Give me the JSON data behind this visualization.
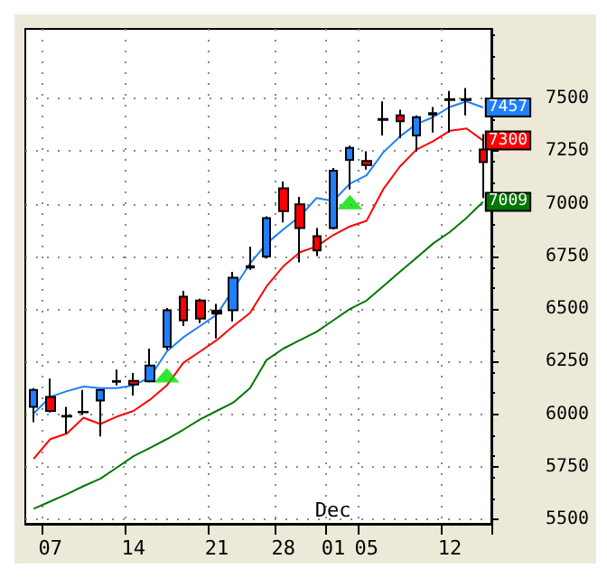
{
  "chart_data": {
    "type": "candlestick",
    "categories": [
      null,
      "07",
      null,
      null,
      null,
      null,
      "14",
      null,
      null,
      null,
      null,
      "21",
      null,
      null,
      null,
      "28",
      null,
      null,
      "01",
      null,
      "05",
      null,
      null,
      null,
      null,
      "12",
      null,
      null
    ],
    "ohlc": [
      [
        6035,
        6124,
        5962,
        6116
      ],
      [
        6083,
        6169,
        6008,
        6016
      ],
      [
        5992,
        6035,
        5909,
        5989
      ],
      [
        6010,
        6116,
        5997,
        6012
      ],
      [
        6065,
        6118,
        5895,
        6116
      ],
      [
        6154,
        6212,
        6137,
        6158
      ],
      [
        6159,
        6196,
        6089,
        6142
      ],
      [
        6156,
        6312,
        6151,
        6231
      ],
      [
        6320,
        6505,
        6306,
        6494
      ],
      [
        6559,
        6586,
        6419,
        6446
      ],
      [
        6540,
        6549,
        6433,
        6454
      ],
      [
        6478,
        6524,
        6360,
        6492
      ],
      [
        6494,
        6676,
        6441,
        6649
      ],
      [
        6697,
        6795,
        6686,
        6703
      ],
      [
        6749,
        6940,
        6740,
        6932
      ],
      [
        7073,
        7105,
        6911,
        6965
      ],
      [
        6997,
        7032,
        6722,
        6884
      ],
      [
        6846,
        6884,
        6751,
        6778
      ],
      [
        6884,
        7170,
        6878,
        7157
      ],
      [
        7208,
        7276,
        7068,
        7265
      ],
      [
        7203,
        7249,
        7162,
        7184
      ],
      [
        7398,
        7486,
        7324,
        7402
      ],
      [
        7419,
        7446,
        7311,
        7392
      ],
      [
        7324,
        7419,
        7249,
        7411
      ],
      [
        7424,
        7459,
        7338,
        7430
      ],
      [
        7492,
        7535,
        7338,
        7497
      ],
      [
        7497,
        7549,
        7419,
        7492
      ],
      [
        7257,
        7330,
        7027,
        7197
      ]
    ],
    "colors": [
      "#1e7fff",
      "#ff0000",
      "#000000",
      "#000000",
      "#1e7fff",
      "#000000",
      "#ff0000",
      "#1e7fff",
      "#1e7fff",
      "#ff0000",
      "#ff0000",
      "#000000",
      "#1e7fff",
      "#000000",
      "#1e7fff",
      "#ff0000",
      "#ff0000",
      "#ff0000",
      "#1e7fff",
      "#1e7fff",
      "#ff0000",
      "#000000",
      "#ff0000",
      "#1e7fff",
      "#000000",
      "#000000",
      "#000000",
      "#ff0000"
    ],
    "series": [
      {
        "type": "line",
        "color": "#1e7fff",
        "values": [
          6003,
          6083,
          6110,
          6132,
          6124,
          6124,
          6137,
          6177,
          6298,
          6366,
          6419,
          6473,
          6594,
          6716,
          6811,
          6878,
          6940,
          7027,
          7013,
          7095,
          7135,
          7243,
          7319,
          7378,
          7411,
          7459,
          7486,
          7457
        ],
        "value_labels": [
          null,
          null,
          null,
          null,
          null,
          null,
          null,
          null,
          null,
          null,
          null,
          null,
          null,
          null,
          null,
          null,
          null,
          null,
          null,
          null,
          null,
          null,
          null,
          null,
          null,
          null,
          null,
          "7457"
        ]
      },
      {
        "type": "line",
        "color": "#ff0000",
        "values": [
          5788,
          5882,
          5909,
          5984,
          5954,
          5989,
          6016,
          6070,
          6137,
          6245,
          6298,
          6352,
          6419,
          6481,
          6608,
          6703,
          6770,
          6797,
          6851,
          6892,
          6919,
          7068,
          7176,
          7257,
          7297,
          7346,
          7357,
          7300
        ],
        "value_labels": [
          null,
          null,
          null,
          null,
          null,
          null,
          null,
          null,
          null,
          null,
          null,
          null,
          null,
          null,
          null,
          null,
          null,
          null,
          null,
          null,
          null,
          null,
          null,
          null,
          null,
          null,
          null,
          "7300"
        ]
      },
      {
        "type": "line",
        "color": "#007700",
        "values": [
          5551,
          5586,
          5621,
          5659,
          5694,
          5747,
          5801,
          5841,
          5882,
          5927,
          5976,
          6016,
          6056,
          6124,
          6258,
          6312,
          6352,
          6392,
          6446,
          6500,
          6540,
          6608,
          6676,
          6743,
          6811,
          6865,
          6932,
          7009
        ],
        "value_labels": [
          null,
          null,
          null,
          null,
          null,
          null,
          null,
          null,
          null,
          null,
          null,
          null,
          null,
          null,
          null,
          null,
          null,
          null,
          null,
          null,
          null,
          null,
          null,
          null,
          null,
          null,
          null,
          "7009"
        ]
      },
      {
        "type": "scatter",
        "color": "#00dd00",
        "marker": "triangle",
        "values": [
          null,
          null,
          null,
          null,
          null,
          null,
          null,
          null,
          6185,
          null,
          null,
          null,
          null,
          null,
          null,
          null,
          null,
          null,
          null,
          7008,
          null,
          null,
          null,
          null,
          null,
          null,
          null,
          null
        ]
      }
    ],
    "annotations": [
      "Dec"
    ],
    "ylim": [
      5480,
      7830
    ],
    "yticks": [
      5500,
      5750,
      6000,
      6250,
      6500,
      6750,
      7000,
      7250,
      7500
    ],
    "grid": true
  }
}
